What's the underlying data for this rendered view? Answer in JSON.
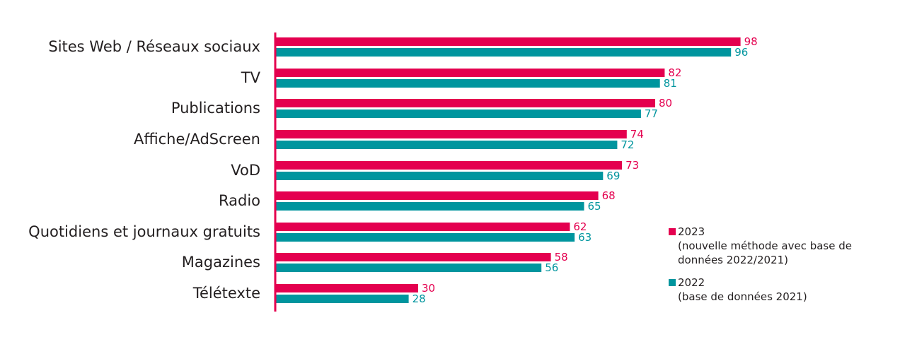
{
  "colors": {
    "s2023": "#e4004f",
    "s2022": "#00959e",
    "axis": "#e4004f",
    "text": "#231f20"
  },
  "chart_data": {
    "type": "bar",
    "orientation": "horizontal",
    "categories": [
      "Sites Web / Réseaux sociaux",
      "TV",
      "Publications",
      "Affiche/AdScreen",
      "VoD",
      "Radio",
      "Quotidiens et journaux gratuits",
      "Magazines",
      "Télétexte"
    ],
    "series": [
      {
        "name": "2023",
        "values": [
          98,
          82,
          80,
          74,
          73,
          68,
          62,
          58,
          30
        ]
      },
      {
        "name": "2022",
        "values": [
          96,
          81,
          77,
          72,
          69,
          65,
          63,
          56,
          28
        ]
      }
    ],
    "xlim": [
      0,
      100
    ],
    "grid": false,
    "data_labels": true,
    "legend_position": "right"
  },
  "legend": {
    "items": [
      {
        "label": "2023",
        "sub": "(nouvelle méthode avec base de données 2022/2021)"
      },
      {
        "label": "2022",
        "sub": "(base de données 2021)"
      }
    ]
  }
}
